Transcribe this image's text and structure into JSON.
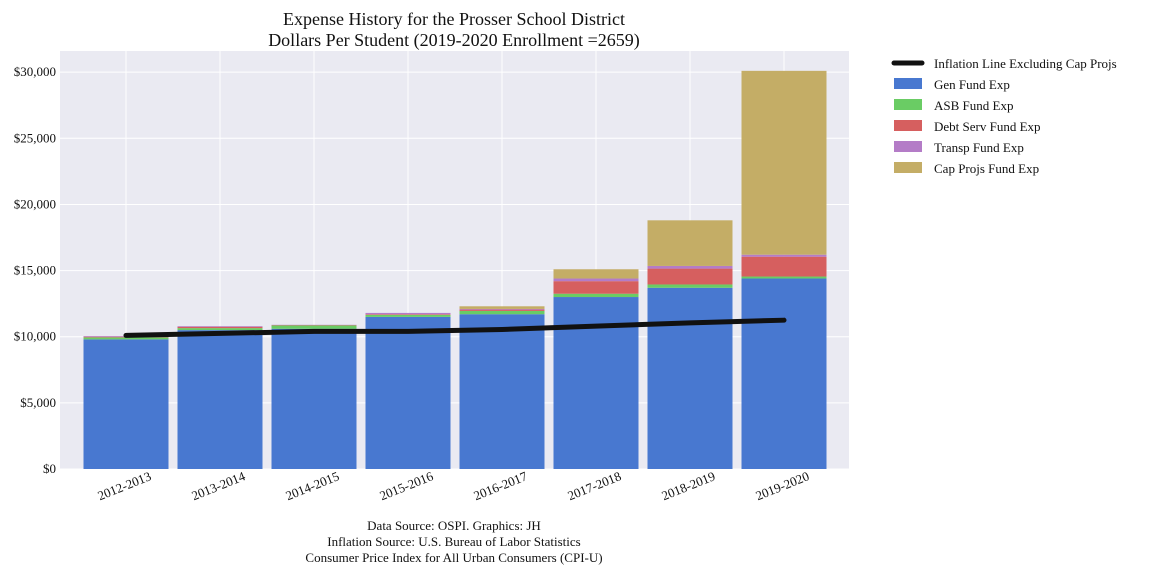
{
  "chart_data": {
    "type": "bar",
    "stacked": true,
    "title": "Expense History for the Prosser School District",
    "subtitle": "Dollars Per Student (2019-2020 Enrollment =2659)",
    "categories": [
      "2012-2013",
      "2013-2014",
      "2014-2015",
      "2015-2016",
      "2016-2017",
      "2017-2018",
      "2018-2019",
      "2019-2020"
    ],
    "ylim": [
      0,
      31600
    ],
    "yticks": [
      0,
      5000,
      10000,
      15000,
      20000,
      25000,
      30000
    ],
    "ytick_labels": [
      "$0",
      "$5,000",
      "$10,000",
      "$15,000",
      "$20,000",
      "$25,000",
      "$30,000"
    ],
    "grid": true,
    "legend_position": "outside-right",
    "series": [
      {
        "name": "Gen Fund Exp",
        "color": "#4878d0",
        "values": [
          9800,
          10500,
          10600,
          11500,
          11700,
          13000,
          13700,
          14400
        ]
      },
      {
        "name": "ASB Fund Exp",
        "color": "#6acc64",
        "values": [
          150,
          150,
          250,
          150,
          250,
          250,
          250,
          150
        ]
      },
      {
        "name": "Debt Serv Fund Exp",
        "color": "#d65f5f",
        "values": [
          50,
          100,
          30,
          50,
          100,
          950,
          1200,
          1500
        ]
      },
      {
        "name": "Transp Fund Exp",
        "color": "#b47cc7",
        "values": [
          50,
          50,
          20,
          100,
          50,
          200,
          200,
          150
        ]
      },
      {
        "name": "Cap Projs Fund Exp",
        "color": "#c4ad66",
        "values": [
          0,
          0,
          0,
          0,
          200,
          700,
          3450,
          13900
        ]
      }
    ],
    "line": {
      "name": "Inflation Line Excluding Cap Projs",
      "color": "#111111",
      "values": [
        10100,
        10250,
        10400,
        10400,
        10550,
        10800,
        11050,
        11250
      ]
    },
    "source_lines": [
      "Data Source: OSPI. Graphics: JH",
      "Inflation Source: U.S. Bureau of Labor Statistics",
      "Consumer Price Index for All Urban Consumers (CPI-U)"
    ]
  }
}
